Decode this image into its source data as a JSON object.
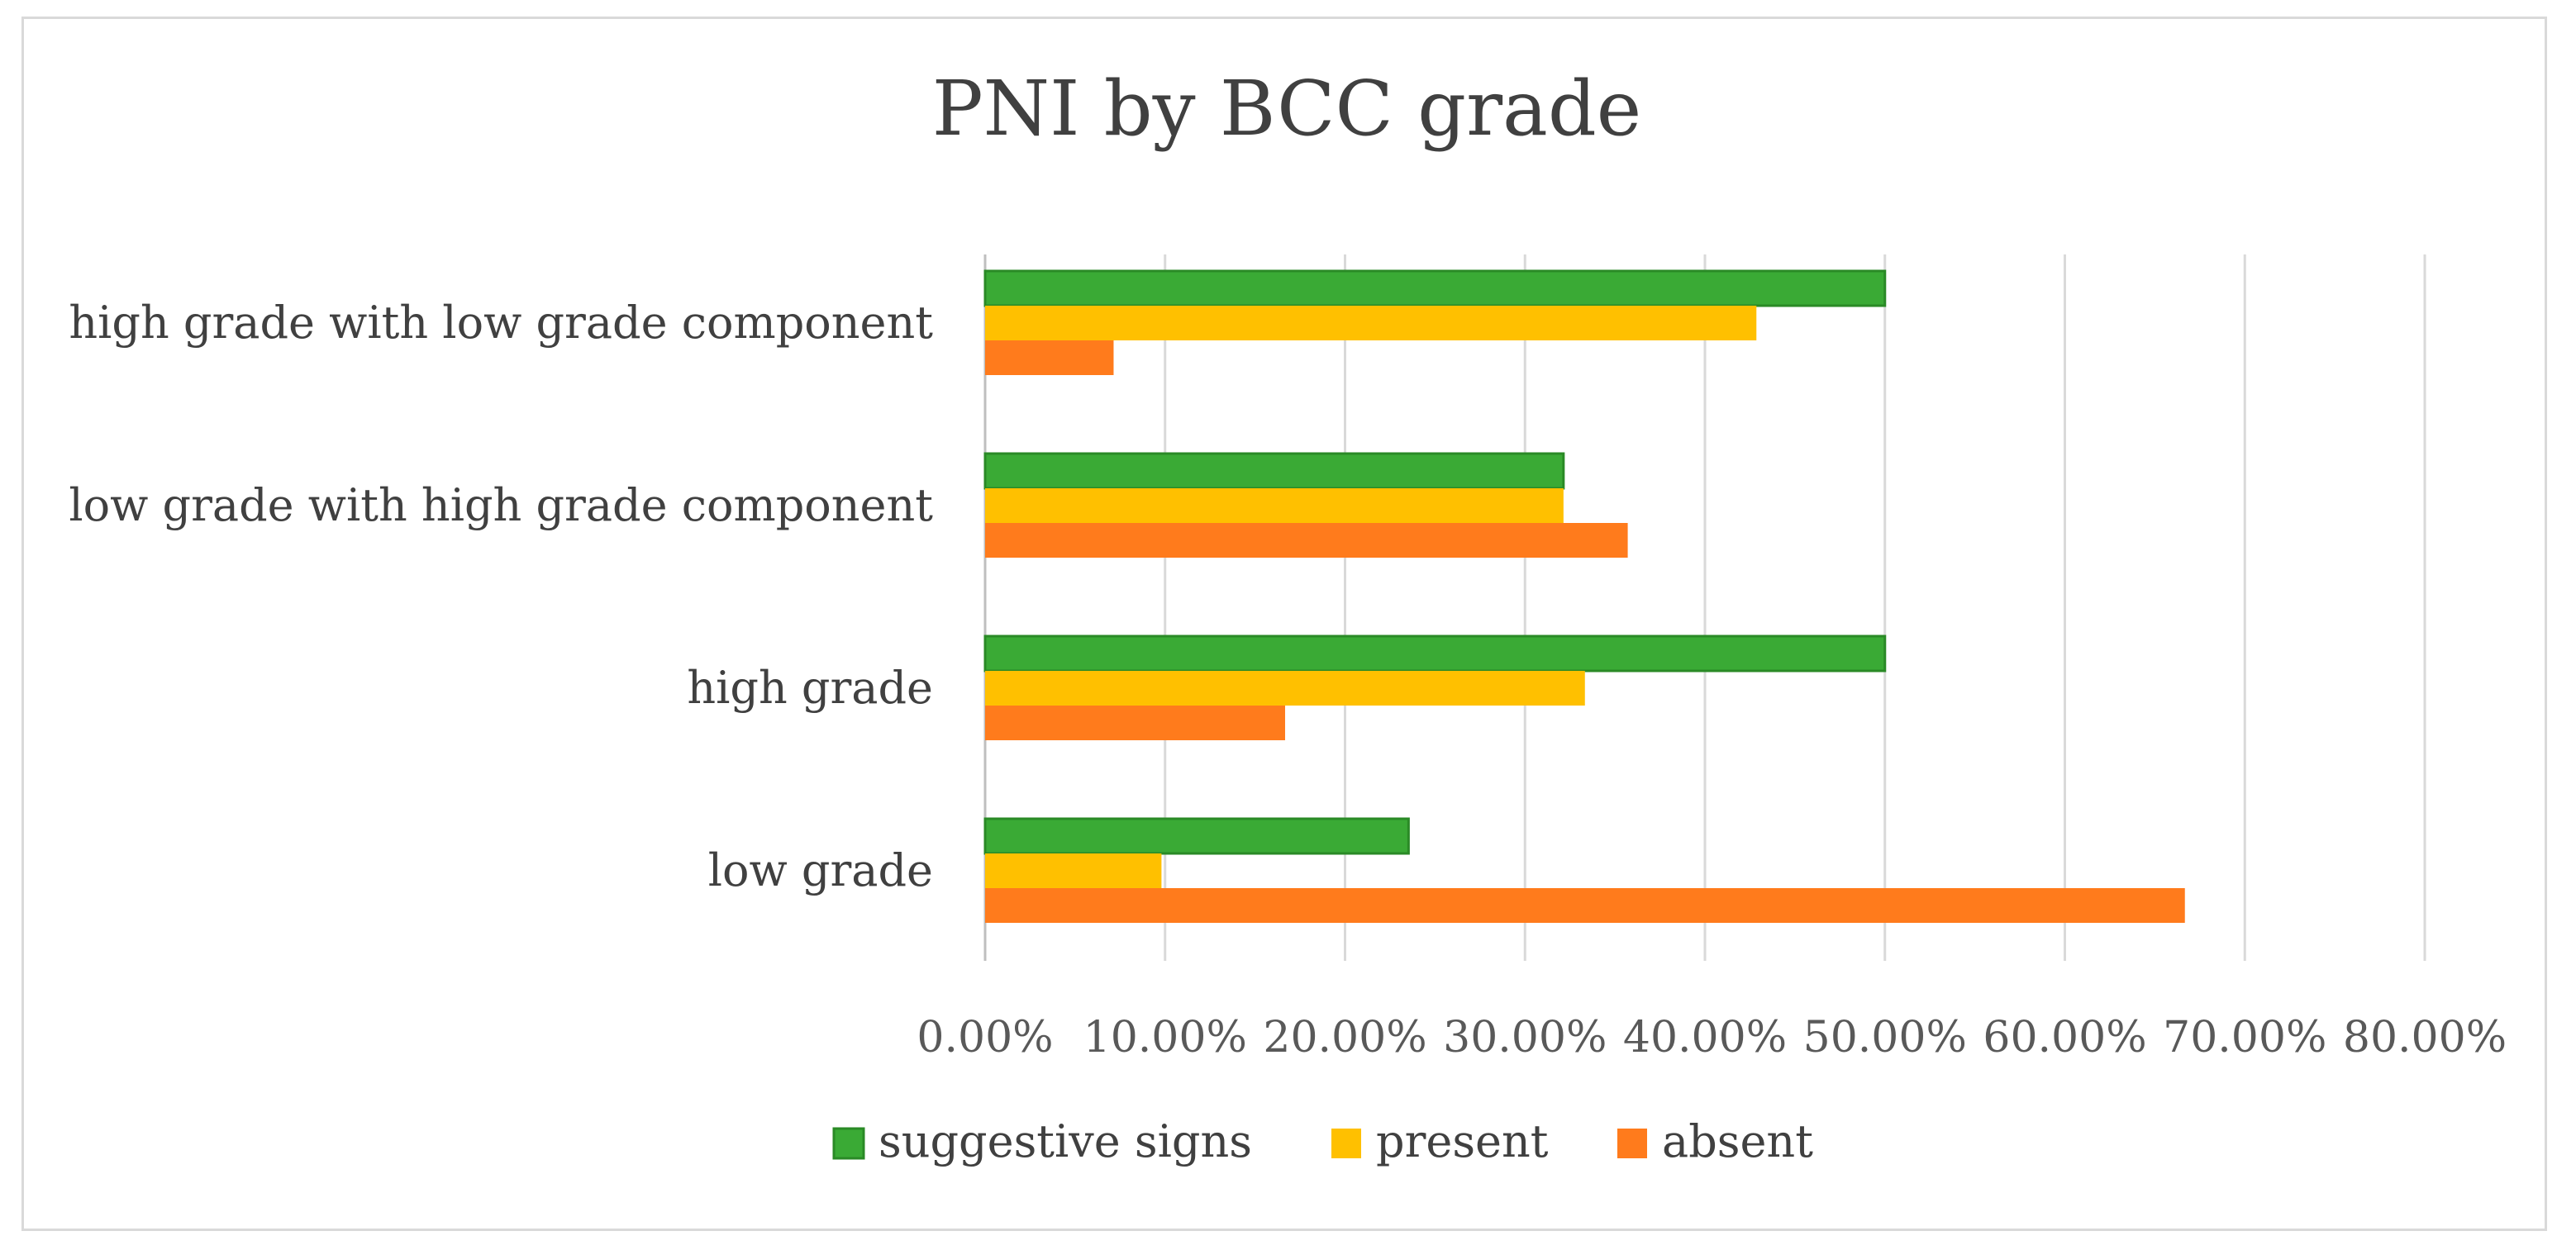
{
  "chart_data": {
    "type": "bar",
    "orientation": "horizontal",
    "title": "PNI by BCC grade",
    "categories": [
      "low grade",
      "high grade",
      "low grade with high grade component",
      "high grade with low grade component"
    ],
    "series": [
      {
        "name": "suggestive signs",
        "color": "#3aaa35",
        "values": [
          0.2353,
          0.5,
          0.3214,
          0.5
        ]
      },
      {
        "name": "present",
        "color": "#ffc000",
        "values": [
          0.098,
          0.3333,
          0.3214,
          0.4286
        ]
      },
      {
        "name": "absent",
        "color": "#ff7b1c",
        "values": [
          0.6667,
          0.1667,
          0.3571,
          0.0714
        ]
      }
    ],
    "xlim": [
      0,
      0.8
    ],
    "xticks": [
      0,
      0.1,
      0.2,
      0.3,
      0.4,
      0.5,
      0.6,
      0.7,
      0.8
    ],
    "xtick_labels": [
      "0.00%",
      "10.00%",
      "20.00%",
      "30.00%",
      "40.00%",
      "50.00%",
      "60.00%",
      "70.00%",
      "80.00%"
    ],
    "xlabel": "",
    "ylabel": "",
    "grid": "vertical",
    "legend_position": "bottom"
  }
}
